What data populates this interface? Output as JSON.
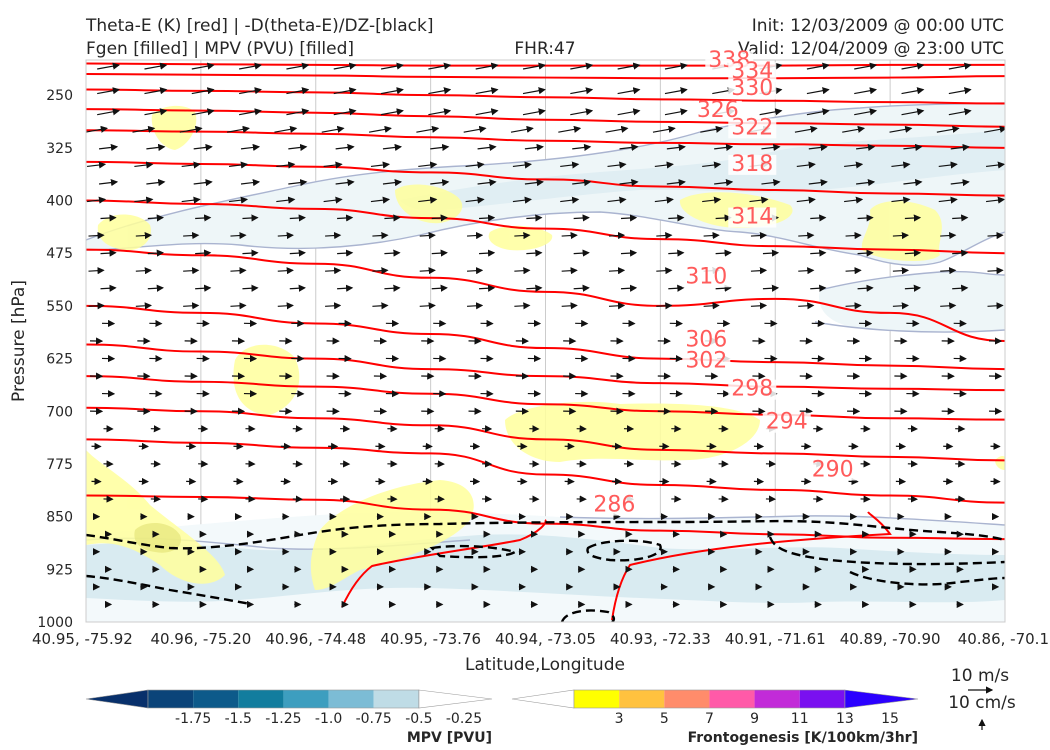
{
  "header": {
    "left_line1": "Theta-E (K) [red] | -D(theta-E)/DZ-[black]",
    "left_line2": "Fgen [filled] | MPV (PVU) [filled]",
    "center": "FHR:47",
    "right_line1": "Init: 12/03/2009 @ 00:00 UTC",
    "right_line2": "Valid: 12/04/2009 @ 23:00 UTC"
  },
  "chart_data": {
    "type": "cross-section",
    "xlabel": "Latitude,Longitude",
    "ylabel": "Pressure [hPa]",
    "x_tick_labels": [
      "40.95, -75.92",
      "40.96, -75.20",
      "40.96, -74.48",
      "40.95, -73.76",
      "40.94, -73.05",
      "40.93, -72.33",
      "40.91, -71.61",
      "40.89, -70.90",
      "40.86, -70.1"
    ],
    "y_ticks": [
      250,
      325,
      400,
      475,
      550,
      625,
      700,
      775,
      850,
      925,
      1000
    ],
    "y_range": [
      200,
      1000
    ],
    "theta_e_color": "#ff0000",
    "theta_e_label_color": "#ff5b5b",
    "theta_e_contours": [
      {
        "label": "338",
        "p": [
          205,
          206,
          207,
          208,
          208,
          208,
          208,
          207,
          207
        ]
      },
      {
        "label": "334",
        "p": [
          220,
          221,
          222,
          224,
          225,
          226,
          226,
          225,
          223
        ]
      },
      {
        "label": "330",
        "p": [
          242,
          244,
          246,
          250,
          253,
          256,
          258,
          260,
          262
        ]
      },
      {
        "label": "326",
        "p": [
          270,
          272,
          275,
          280,
          285,
          288,
          290,
          292,
          295
        ]
      },
      {
        "label": "322",
        "p": [
          300,
          302,
          305,
          310,
          315,
          318,
          320,
          322,
          325
        ]
      },
      {
        "label": "318",
        "p": [
          345,
          348,
          352,
          360,
          370,
          380,
          385,
          390,
          393
        ]
      },
      {
        "label": "314",
        "p": [
          400,
          405,
          412,
          425,
          440,
          455,
          465,
          470,
          475
        ]
      },
      {
        "label": "310",
        "p": [
          470,
          478,
          490,
          510,
          530,
          550,
          540,
          560,
          600
        ]
      },
      {
        "label": "306",
        "p": [
          550,
          560,
          575,
          590,
          610,
          625,
          630,
          635,
          640
        ]
      },
      {
        "label": "302",
        "p": [
          605,
          615,
          625,
          640,
          650,
          660,
          665,
          668,
          670
        ]
      },
      {
        "label": "298",
        "p": [
          650,
          658,
          665,
          675,
          690,
          700,
          705,
          710,
          712
        ]
      },
      {
        "label": "294",
        "p": [
          695,
          700,
          710,
          720,
          740,
          755,
          760,
          765,
          770
        ]
      },
      {
        "label": "290",
        "p": [
          740,
          745,
          752,
          760,
          790,
          805,
          812,
          820,
          830
        ]
      },
      {
        "label": "286",
        "p": [
          820,
          822,
          826,
          840,
          860,
          870,
          875,
          880,
          882
        ]
      }
    ],
    "theta_e_labels": [
      {
        "text": "338",
        "x": 5.6,
        "p": 207
      },
      {
        "text": "334",
        "x": 5.8,
        "p": 223
      },
      {
        "text": "330",
        "x": 5.8,
        "p": 247
      },
      {
        "text": "326",
        "x": 5.5,
        "p": 278
      },
      {
        "text": "322",
        "x": 5.8,
        "p": 303
      },
      {
        "text": "318",
        "x": 5.8,
        "p": 355
      },
      {
        "text": "314",
        "x": 5.8,
        "p": 430
      },
      {
        "text": "310",
        "x": 5.4,
        "p": 515
      },
      {
        "text": "306",
        "x": 5.4,
        "p": 605
      },
      {
        "text": "302",
        "x": 5.4,
        "p": 635
      },
      {
        "text": "298",
        "x": 5.8,
        "p": 675
      },
      {
        "text": "294",
        "x": 6.1,
        "p": 722
      },
      {
        "text": "290",
        "x": 6.5,
        "p": 790
      },
      {
        "text": "286",
        "x": 4.6,
        "p": 840
      }
    ],
    "mpv_colorbar": {
      "label": "MPV [PVU]",
      "tick_labels": [
        "-1.75",
        "-1.5",
        "-1.25",
        "-1.0",
        "-0.75",
        "-0.5",
        "-0.25"
      ],
      "colors": [
        "#08306b",
        "#0b4479",
        "#0d5a8a",
        "#127d9e",
        "#3d9ebf",
        "#7cbcd5",
        "#bfdce6",
        "#ffffff"
      ]
    },
    "fgen_colorbar": {
      "label": "Frontogenesis [K/100km/3hr]",
      "tick_labels": [
        "3",
        "5",
        "7",
        "9",
        "11",
        "13",
        "15"
      ],
      "colors": [
        "#ffffff",
        "#ffff00",
        "#ffc23f",
        "#ff8c6b",
        "#ff5aa8",
        "#c22bd8",
        "#7a10f0",
        "#2b00ff"
      ]
    },
    "wind_key": {
      "line1": "10 m/s",
      "line2": "10 cm/s"
    },
    "grid": true
  }
}
